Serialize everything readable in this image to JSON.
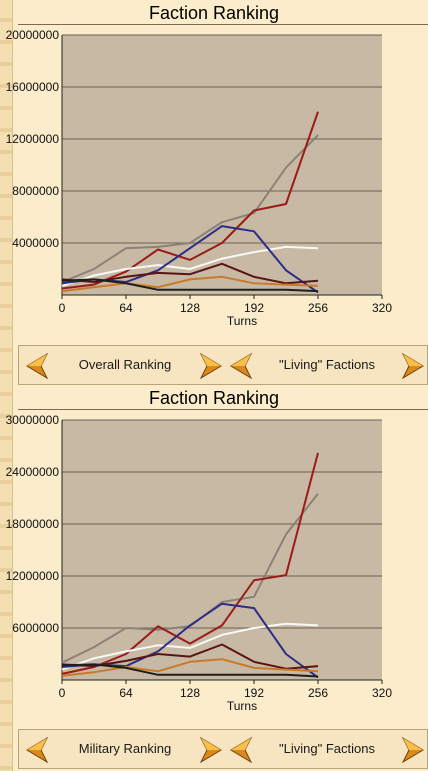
{
  "panels": [
    {
      "title": "Faction Ranking",
      "ranking_label": "Overall Ranking",
      "factions_label": "\"Living\" Factions",
      "chart_data": {
        "type": "line",
        "xlabel": "Turns",
        "ylabel": "",
        "xlim": [
          0,
          320
        ],
        "ylim": [
          0,
          20000000
        ],
        "xticks": [
          "0",
          "64",
          "128",
          "192",
          "256",
          "320"
        ],
        "yticks": [
          "4000000",
          "8000000",
          "12000000",
          "16000000",
          "20000000"
        ],
        "series": [
          {
            "color": "#8b8178",
            "x": [
              0,
              32,
              64,
              96,
              128,
              160,
              192,
              224,
              256
            ],
            "y": [
              1000000,
              2000000,
              3600000,
              3700000,
              4000000,
              5600000,
              6300000,
              9800000,
              12300000
            ]
          },
          {
            "color": "#9b1a1a",
            "x": [
              0,
              32,
              64,
              96,
              128,
              160,
              192,
              224,
              256
            ],
            "y": [
              500000,
              800000,
              1800000,
              3500000,
              2700000,
              4000000,
              6500000,
              7000000,
              14100000
            ]
          },
          {
            "color": "#f8f8f8",
            "x": [
              0,
              32,
              64,
              96,
              128,
              160,
              192,
              224,
              256
            ],
            "y": [
              700000,
              1500000,
              2000000,
              2300000,
              2000000,
              2800000,
              3300000,
              3700000,
              3600000
            ]
          },
          {
            "color": "#2d2d88",
            "x": [
              0,
              32,
              64,
              96,
              128,
              160,
              192,
              224,
              256
            ],
            "y": [
              900000,
              1200000,
              1000000,
              1900000,
              3600000,
              5300000,
              4900000,
              1900000,
              200000
            ]
          },
          {
            "color": "#5a1414",
            "x": [
              0,
              32,
              64,
              96,
              128,
              160,
              192,
              224,
              256
            ],
            "y": [
              1200000,
              1000000,
              1400000,
              1700000,
              1600000,
              2400000,
              1400000,
              900000,
              1100000
            ]
          },
          {
            "color": "#c87a2a",
            "x": [
              0,
              32,
              64,
              96,
              128,
              160,
              192,
              224,
              256
            ],
            "y": [
              300000,
              600000,
              900000,
              600000,
              1200000,
              1400000,
              900000,
              800000,
              700000
            ]
          },
          {
            "color": "#1e1e1e",
            "x": [
              0,
              32,
              64,
              96,
              128,
              160,
              192,
              224,
              256
            ],
            "y": [
              1100000,
              1200000,
              900000,
              400000,
              400000,
              400000,
              400000,
              400000,
              300000
            ]
          }
        ]
      }
    },
    {
      "title": "Faction Ranking",
      "ranking_label": "Military Ranking",
      "factions_label": "\"Living\" Factions",
      "chart_data": {
        "type": "line",
        "xlabel": "Turns",
        "ylabel": "",
        "xlim": [
          0,
          320
        ],
        "ylim": [
          0,
          30000000
        ],
        "xticks": [
          "0",
          "64",
          "128",
          "192",
          "256",
          "320"
        ],
        "yticks": [
          "6000000",
          "12000000",
          "18000000",
          "24000000",
          "30000000"
        ],
        "series": [
          {
            "color": "#8b8178",
            "x": [
              0,
              32,
              64,
              96,
              128,
              160,
              192,
              224,
              256
            ],
            "y": [
              2000000,
              3800000,
              6000000,
              5800000,
              6200000,
              9000000,
              9600000,
              16800000,
              21500000
            ]
          },
          {
            "color": "#9b1a1a",
            "x": [
              0,
              32,
              64,
              96,
              128,
              160,
              192,
              224,
              256
            ],
            "y": [
              700000,
              1500000,
              3000000,
              6200000,
              4200000,
              6300000,
              11500000,
              12100000,
              26200000
            ]
          },
          {
            "color": "#f8f8f8",
            "x": [
              0,
              32,
              64,
              96,
              128,
              160,
              192,
              224,
              256
            ],
            "y": [
              1200000,
              2500000,
              3300000,
              4000000,
              3700000,
              5200000,
              6000000,
              6500000,
              6300000
            ]
          },
          {
            "color": "#2d2d88",
            "x": [
              0,
              32,
              64,
              96,
              128,
              160,
              192,
              224,
              256
            ],
            "y": [
              1500000,
              1800000,
              1600000,
              3300000,
              6300000,
              8800000,
              8300000,
              3000000,
              300000
            ]
          },
          {
            "color": "#5a1414",
            "x": [
              0,
              32,
              64,
              96,
              128,
              160,
              192,
              224,
              256
            ],
            "y": [
              1800000,
              1600000,
              2200000,
              3000000,
              2700000,
              4100000,
              2100000,
              1300000,
              1600000
            ]
          },
          {
            "color": "#c87a2a",
            "x": [
              0,
              32,
              64,
              96,
              128,
              160,
              192,
              224,
              256
            ],
            "y": [
              500000,
              900000,
              1500000,
              1000000,
              2100000,
              2400000,
              1400000,
              1200000,
              1000000
            ]
          },
          {
            "color": "#1e1e1e",
            "x": [
              0,
              32,
              64,
              96,
              128,
              160,
              192,
              224,
              256
            ],
            "y": [
              1700000,
              1800000,
              1400000,
              600000,
              600000,
              600000,
              600000,
              600000,
              400000
            ]
          }
        ]
      }
    }
  ]
}
